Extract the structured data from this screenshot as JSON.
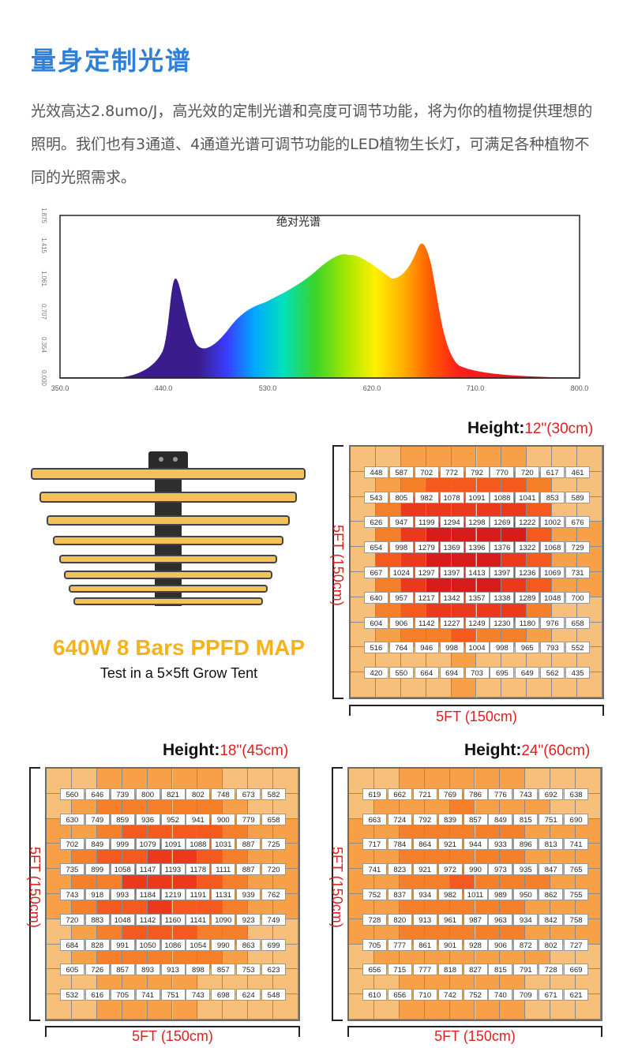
{
  "header": {
    "title": "量身定制光谱",
    "intro": "光效高达2.8umo/J，高光效的定制光谱和亮度可调节功能，将为你的植物提供理想的照明。我们也有3通道、4通道光谱可调节功能的LED植物生长灯，可满足各种植物不同的光照需求。"
  },
  "spectrum": {
    "title": "绝对光谱",
    "x_ticks": [
      "350.0",
      "440.0",
      "530.0",
      "620.0",
      "710.0",
      "800.0"
    ],
    "y_ticks": [
      "0.000",
      "0.354",
      "0.707",
      "1.061",
      "1.415",
      "1.875"
    ]
  },
  "map": {
    "title": "640W 8 Bars PPFD MAP",
    "subtitle": "Test in a 5×5ft Grow Tent"
  },
  "grids": [
    {
      "height_label": "Height:",
      "height_value": "12\"(30cm)",
      "dim_bottom": "5FT (150cm)",
      "dim_left": "5FT (150cm)",
      "rows": [
        [
          "448",
          "587",
          "702",
          "772",
          "792",
          "770",
          "720",
          "617",
          "461"
        ],
        [
          "543",
          "805",
          "982",
          "1078",
          "1091",
          "1088",
          "1041",
          "853",
          "589"
        ],
        [
          "626",
          "947",
          "1199",
          "1294",
          "1298",
          "1269",
          "1222",
          "1002",
          "676"
        ],
        [
          "654",
          "998",
          "1279",
          "1369",
          "1396",
          "1376",
          "1322",
          "1068",
          "729"
        ],
        [
          "667",
          "1024",
          "1297",
          "1397",
          "1413",
          "1397",
          "1236",
          "1069",
          "731"
        ],
        [
          "640",
          "957",
          "1217",
          "1342",
          "1357",
          "1338",
          "1289",
          "1048",
          "700"
        ],
        [
          "604",
          "906",
          "1142",
          "1227",
          "1249",
          "1230",
          "1180",
          "976",
          "658"
        ],
        [
          "516",
          "764",
          "946",
          "998",
          "1004",
          "998",
          "965",
          "793",
          "552"
        ],
        [
          "420",
          "550",
          "664",
          "694",
          "703",
          "695",
          "649",
          "562",
          "435"
        ]
      ]
    },
    {
      "height_label": "Height:",
      "height_value": "18\"(45cm)",
      "dim_bottom": "5FT (150cm)",
      "dim_left": "5FT (150cm)",
      "rows": [
        [
          "560",
          "646",
          "739",
          "800",
          "821",
          "802",
          "748",
          "673",
          "582"
        ],
        [
          "630",
          "749",
          "859",
          "936",
          "952",
          "941",
          "900",
          "779",
          "658"
        ],
        [
          "702",
          "849",
          "999",
          "1079",
          "1091",
          "1088",
          "1031",
          "887",
          "725"
        ],
        [
          "735",
          "899",
          "1058",
          "1147",
          "1193",
          "1178",
          "1111",
          "887",
          "720"
        ],
        [
          "743",
          "918",
          "993",
          "1184",
          "1219",
          "1191",
          "1131",
          "939",
          "762"
        ],
        [
          "720",
          "883",
          "1048",
          "1142",
          "1160",
          "1141",
          "1090",
          "923",
          "749"
        ],
        [
          "684",
          "828",
          "991",
          "1050",
          "1086",
          "1054",
          "990",
          "863",
          "699"
        ],
        [
          "605",
          "726",
          "857",
          "893",
          "913",
          "898",
          "857",
          "753",
          "623"
        ],
        [
          "532",
          "616",
          "705",
          "741",
          "751",
          "743",
          "698",
          "624",
          "548"
        ]
      ]
    },
    {
      "height_label": "Height:",
      "height_value": "24\"(60cm)",
      "dim_bottom": "5FT (150cm)",
      "dim_left": "5FT (150cm)",
      "rows": [
        [
          "619",
          "662",
          "721",
          "769",
          "786",
          "776",
          "743",
          "692",
          "638"
        ],
        [
          "663",
          "724",
          "792",
          "839",
          "857",
          "849",
          "815",
          "751",
          "690"
        ],
        [
          "717",
          "784",
          "864",
          "921",
          "944",
          "933",
          "896",
          "813",
          "741"
        ],
        [
          "741",
          "823",
          "921",
          "972",
          "990",
          "973",
          "935",
          "847",
          "765"
        ],
        [
          "752",
          "837",
          "934",
          "982",
          "1011",
          "989",
          "950",
          "862",
          "755"
        ],
        [
          "728",
          "820",
          "913",
          "961",
          "987",
          "963",
          "934",
          "842",
          "758"
        ],
        [
          "705",
          "777",
          "861",
          "901",
          "928",
          "906",
          "872",
          "802",
          "727"
        ],
        [
          "656",
          "715",
          "777",
          "818",
          "827",
          "815",
          "791",
          "728",
          "669"
        ],
        [
          "610",
          "656",
          "710",
          "742",
          "752",
          "740",
          "709",
          "671",
          "621"
        ]
      ]
    }
  ]
}
